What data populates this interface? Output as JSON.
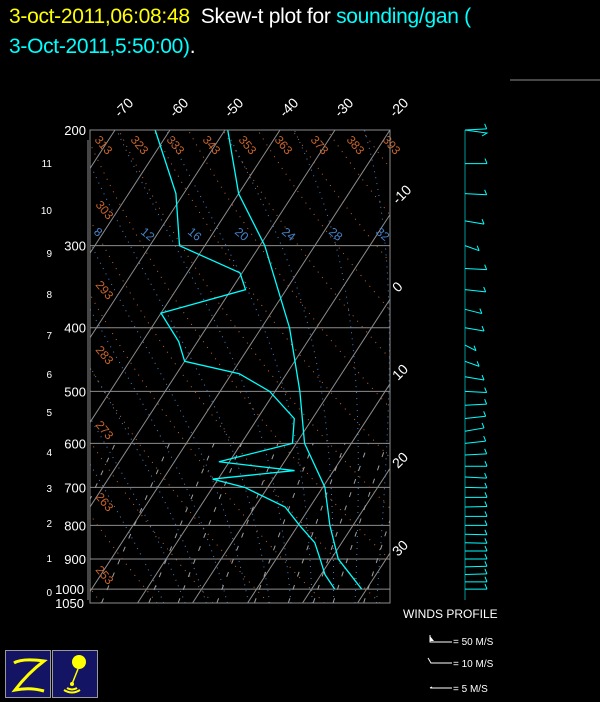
{
  "header": {
    "timestamp": "3-oct-2011,06:08:48",
    "title_text": "Skew-t plot for",
    "source": "sounding/gan (",
    "source_time": "3-Oct-2011,5:50:00)",
    "period": "."
  },
  "winds_legend": {
    "title": "WINDS PROFILE",
    "items": [
      "= 50 M/S",
      "= 10 M/S",
      "= 5 M/S"
    ]
  },
  "logos": [
    "Z logo",
    "balloon logo"
  ],
  "colors": {
    "temperature": "#00ffff",
    "dewpoint": "#00ffff",
    "isobar": "#8c8c8c",
    "isotherm": "#8c8c8c",
    "dry_adiabat": "#c8642d",
    "moist_adiabat": "#4682c8",
    "mixing_ratio": "#a0a0a0",
    "title_date": "#ffff00"
  },
  "chart_data": {
    "type": "line",
    "subtype": "skew-t log-p",
    "pressure_ticks": [
      200,
      300,
      400,
      500,
      600,
      700,
      800,
      900,
      1000,
      1050
    ],
    "pressure_range": [
      1050,
      200
    ],
    "height_ticks_km": [
      0,
      1,
      2,
      3,
      4,
      5,
      6,
      7,
      8,
      9,
      10,
      11
    ],
    "isotherm_labels_top": [
      "-70",
      "-60",
      "-50",
      "-40",
      "-30",
      "-20"
    ],
    "isotherm_labels_right": [
      "-10",
      "0",
      "10",
      "20",
      "30"
    ],
    "dry_adiabat_labels_top": [
      "313",
      "323",
      "333",
      "343",
      "353",
      "363",
      "373",
      "383",
      "393"
    ],
    "dry_adiabat_labels_left": [
      "303",
      "293",
      "283",
      "273",
      "263",
      "253"
    ],
    "moist_adiabat_labels": [
      "8",
      "12",
      "16",
      "20",
      "24",
      "28",
      "32"
    ],
    "series": [
      {
        "pressure": [
          1000,
          900,
          800,
          700,
          600,
          500,
          400,
          300,
          250,
          200
        ],
        "values": [
          29.1,
          21.3,
          15.8,
          10.4,
          1.5,
          -5.5,
          -14.9,
          -29.1,
          -40,
          -49.5
        ]
      },
      {
        "pressure": [
          1000,
          950,
          900,
          850,
          800,
          750,
          700,
          680,
          660,
          640,
          600,
          550,
          500,
          470,
          450,
          420,
          380,
          350,
          330,
          300,
          250,
          200
        ],
        "values": [
          24.2,
          20.7,
          18,
          15.1,
          10.3,
          5.5,
          -4.2,
          -11,
          2.9,
          -11.9,
          -0.7,
          -3.3,
          -11,
          -18.6,
          -30,
          -33.4,
          -40,
          -27.4,
          -30.4,
          -44.6,
          -51.4,
          -62.7
        ]
      }
    ],
    "winds": {
      "pressure": [
        1000,
        975,
        950,
        925,
        900,
        875,
        850,
        825,
        800,
        775,
        750,
        725,
        700,
        675,
        650,
        625,
        600,
        575,
        550,
        525,
        500,
        475,
        450,
        425,
        400,
        375,
        350,
        325,
        300,
        275,
        250,
        225,
        200
      ],
      "direction_deg": [
        270,
        270,
        265,
        265,
        270,
        270,
        275,
        275,
        270,
        270,
        265,
        270,
        275,
        280,
        270,
        260,
        250,
        240,
        250,
        260,
        280,
        300,
        320,
        330,
        300,
        310,
        290,
        280,
        320,
        300,
        280,
        270,
        260
      ],
      "speed_ms": [
        6,
        7,
        7,
        8,
        8,
        7,
        7,
        6,
        6,
        5,
        5,
        4,
        4,
        3,
        3,
        4,
        3,
        4,
        4,
        3,
        3,
        2,
        3,
        4,
        5,
        4,
        3,
        5,
        6,
        5,
        4,
        4,
        3
      ]
    }
  }
}
